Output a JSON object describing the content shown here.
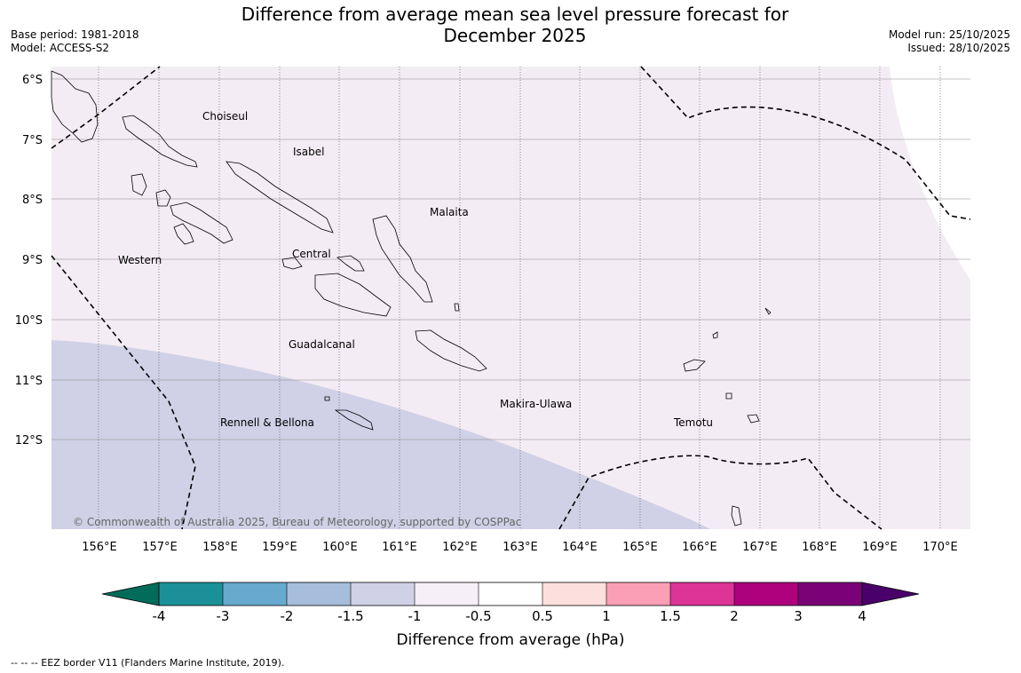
{
  "title": {
    "line1": "Difference from average mean sea level pressure forecast for",
    "line2": "December 2025"
  },
  "meta_left": {
    "base_period": "Base period: 1981-2018",
    "model": "Model: ACCESS-S2"
  },
  "meta_right": {
    "model_run": "Model run: 25/10/2025",
    "issued": "Issued: 28/10/2025"
  },
  "map": {
    "lat_labels": [
      "6°S",
      "7°S",
      "8°S",
      "9°S",
      "10°S",
      "11°S",
      "12°S"
    ],
    "lon_labels": [
      "156°E",
      "157°E",
      "158°E",
      "159°E",
      "160°E",
      "161°E",
      "162°E",
      "163°E",
      "164°E",
      "165°E",
      "166°E",
      "167°E",
      "168°E",
      "169°E",
      "170°E"
    ],
    "places": {
      "choiseul": "Choiseul",
      "isabel": "Isabel",
      "malaita": "Malaita",
      "western": "Western",
      "central": "Central",
      "guadalcanal": "Guadalcanal",
      "makira": "Makira-Ulawa",
      "temotu": "Temotu",
      "rennell": "Rennell & Bellona"
    },
    "copyright": "© Commonwealth of Australia 2025, Bureau of Meteorology, supported by COSPPac",
    "colors": {
      "band_minus1_to_minus05": "#f4ecf4",
      "band_minus15_to_minus1": "#d0d1e6"
    }
  },
  "colorbar": {
    "ticks": [
      "-4",
      "-3",
      "-2",
      "-1.5",
      "-1",
      "-0.5",
      "0.5",
      "1",
      "1.5",
      "2",
      "3",
      "4"
    ],
    "colors": [
      "#016c59",
      "#1c9099",
      "#67a9cf",
      "#a6bddb",
      "#d0d1e6",
      "#f6eff7",
      "#ffffff",
      "#fde0dd",
      "#fa9fb5",
      "#dd3497",
      "#ae017e",
      "#7a0177",
      "#49006a"
    ],
    "label": "Difference from average (hPa)"
  },
  "footnote": "--  --  -- EEZ border V11 (Flanders Marine Institute, 2019)."
}
